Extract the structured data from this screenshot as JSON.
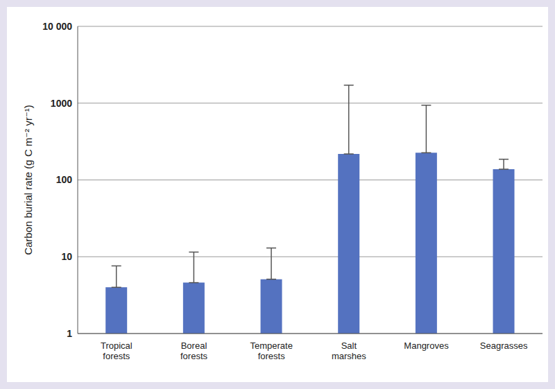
{
  "chart_data": {
    "type": "bar",
    "y_label": "Carbon burial rate (g C m⁻² yr⁻¹)",
    "categories": [
      "Tropical forests",
      "Boreal forests",
      "Temperate forests",
      "Salt marshes",
      "Mangroves",
      "Seagrasses"
    ],
    "values": [
      4.0,
      4.6,
      5.1,
      218,
      226,
      138
    ],
    "errors": [
      3.6,
      6.9,
      7.9,
      1495,
      714,
      48
    ],
    "color": "#5472c0",
    "log": "y",
    "ylim": [
      1,
      10000
    ],
    "yticks": [
      1,
      10,
      100,
      1000,
      {
        "value": 10000,
        "label": "10 000"
      }
    ],
    "grid": true
  }
}
